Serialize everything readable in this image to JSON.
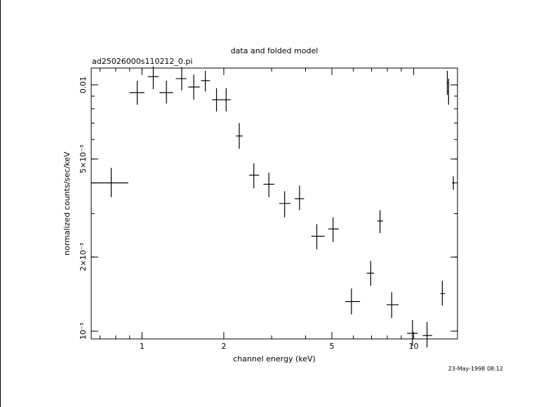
{
  "chart_data": {
    "type": "scatter",
    "title": "data and folded model",
    "subtitle": "ad25026000s110212_0.pi",
    "xlabel": "channel energy (keV)",
    "ylabel": "normalized counts/sec/keV",
    "timestamp": "23-May-1998 08:12",
    "x_scale": "log",
    "y_scale": "log",
    "xlim": [
      0.65,
      14.5
    ],
    "ylim": [
      0.00093,
      0.0117
    ],
    "grid": false,
    "x_ticks": [
      {
        "value": 1,
        "label": "1"
      },
      {
        "value": 2,
        "label": "2"
      },
      {
        "value": 5,
        "label": "5"
      },
      {
        "value": 10,
        "label": "10"
      }
    ],
    "y_ticks": [
      {
        "value": 0.001,
        "label": "10⁻³"
      },
      {
        "value": 0.002,
        "label": "2×10⁻³"
      },
      {
        "value": 0.005,
        "label": "5×10⁻³"
      },
      {
        "value": 0.01,
        "label": "0.01"
      }
    ],
    "points": [
      {
        "x": 0.77,
        "xlo": 0.65,
        "xhi": 0.89,
        "y": 0.004,
        "ylo": 0.0035,
        "yhi": 0.0046
      },
      {
        "x": 0.96,
        "xlo": 0.9,
        "xhi": 1.02,
        "y": 0.0093,
        "ylo": 0.0083,
        "yhi": 0.0104
      },
      {
        "x": 1.1,
        "xlo": 1.05,
        "xhi": 1.15,
        "y": 0.0108,
        "ylo": 0.0096,
        "yhi": 0.0119
      },
      {
        "x": 1.23,
        "xlo": 1.16,
        "xhi": 1.3,
        "y": 0.0093,
        "ylo": 0.0084,
        "yhi": 0.0104
      },
      {
        "x": 1.4,
        "xlo": 1.33,
        "xhi": 1.46,
        "y": 0.0106,
        "ylo": 0.0095,
        "yhi": 0.0118
      },
      {
        "x": 1.55,
        "xlo": 1.48,
        "xhi": 1.63,
        "y": 0.0098,
        "ylo": 0.0087,
        "yhi": 0.011
      },
      {
        "x": 1.71,
        "xlo": 1.65,
        "xhi": 1.78,
        "y": 0.0104,
        "ylo": 0.0094,
        "yhi": 0.0114
      },
      {
        "x": 1.88,
        "xlo": 1.81,
        "xhi": 1.97,
        "y": 0.0087,
        "ylo": 0.0078,
        "yhi": 0.0097
      },
      {
        "x": 2.04,
        "xlo": 1.97,
        "xhi": 2.12,
        "y": 0.0087,
        "ylo": 0.0078,
        "yhi": 0.0097
      },
      {
        "x": 2.28,
        "xlo": 2.22,
        "xhi": 2.35,
        "y": 0.0062,
        "ylo": 0.0055,
        "yhi": 0.007
      },
      {
        "x": 2.58,
        "xlo": 2.48,
        "xhi": 2.7,
        "y": 0.0043,
        "ylo": 0.0038,
        "yhi": 0.0048
      },
      {
        "x": 2.93,
        "xlo": 2.8,
        "xhi": 3.07,
        "y": 0.00395,
        "ylo": 0.0035,
        "yhi": 0.0044
      },
      {
        "x": 3.35,
        "xlo": 3.2,
        "xhi": 3.52,
        "y": 0.0033,
        "ylo": 0.0029,
        "yhi": 0.0037
      },
      {
        "x": 3.8,
        "xlo": 3.65,
        "xhi": 3.95,
        "y": 0.00345,
        "ylo": 0.0031,
        "yhi": 0.0039
      },
      {
        "x": 4.4,
        "xlo": 4.2,
        "xhi": 4.7,
        "y": 0.00243,
        "ylo": 0.00215,
        "yhi": 0.00272
      },
      {
        "x": 5.05,
        "xlo": 4.85,
        "xhi": 5.3,
        "y": 0.0026,
        "ylo": 0.0023,
        "yhi": 0.0029
      },
      {
        "x": 5.9,
        "xlo": 5.6,
        "xhi": 6.35,
        "y": 0.00132,
        "ylo": 0.00117,
        "yhi": 0.00149
      },
      {
        "x": 6.95,
        "xlo": 6.72,
        "xhi": 7.15,
        "y": 0.00172,
        "ylo": 0.00153,
        "yhi": 0.00193
      },
      {
        "x": 7.52,
        "xlo": 7.35,
        "xhi": 7.72,
        "y": 0.0028,
        "ylo": 0.0025,
        "yhi": 0.0031
      },
      {
        "x": 8.3,
        "xlo": 7.95,
        "xhi": 8.8,
        "y": 0.00128,
        "ylo": 0.00113,
        "yhi": 0.00144
      },
      {
        "x": 9.9,
        "xlo": 9.45,
        "xhi": 10.35,
        "y": 0.00098,
        "ylo": 0.00087,
        "yhi": 0.00111
      },
      {
        "x": 11.2,
        "xlo": 10.8,
        "xhi": 11.7,
        "y": 0.00096,
        "ylo": 0.00086,
        "yhi": 0.00109
      },
      {
        "x": 12.75,
        "xlo": 12.55,
        "xhi": 13.05,
        "y": 0.00142,
        "ylo": 0.00127,
        "yhi": 0.0016
      },
      {
        "x": 13.3,
        "xlo": 13.22,
        "xhi": 13.38,
        "y": 0.0102,
        "ylo": 0.0091,
        "yhi": 0.0114
      },
      {
        "x": 13.45,
        "xlo": 13.4,
        "xhi": 13.5,
        "y": 0.0094,
        "ylo": 0.0083,
        "yhi": 0.0106
      },
      {
        "x": 14.0,
        "xlo": 13.85,
        "xhi": 14.2,
        "y": 0.004,
        "ylo": 0.00375,
        "yhi": 0.00425
      }
    ]
  }
}
